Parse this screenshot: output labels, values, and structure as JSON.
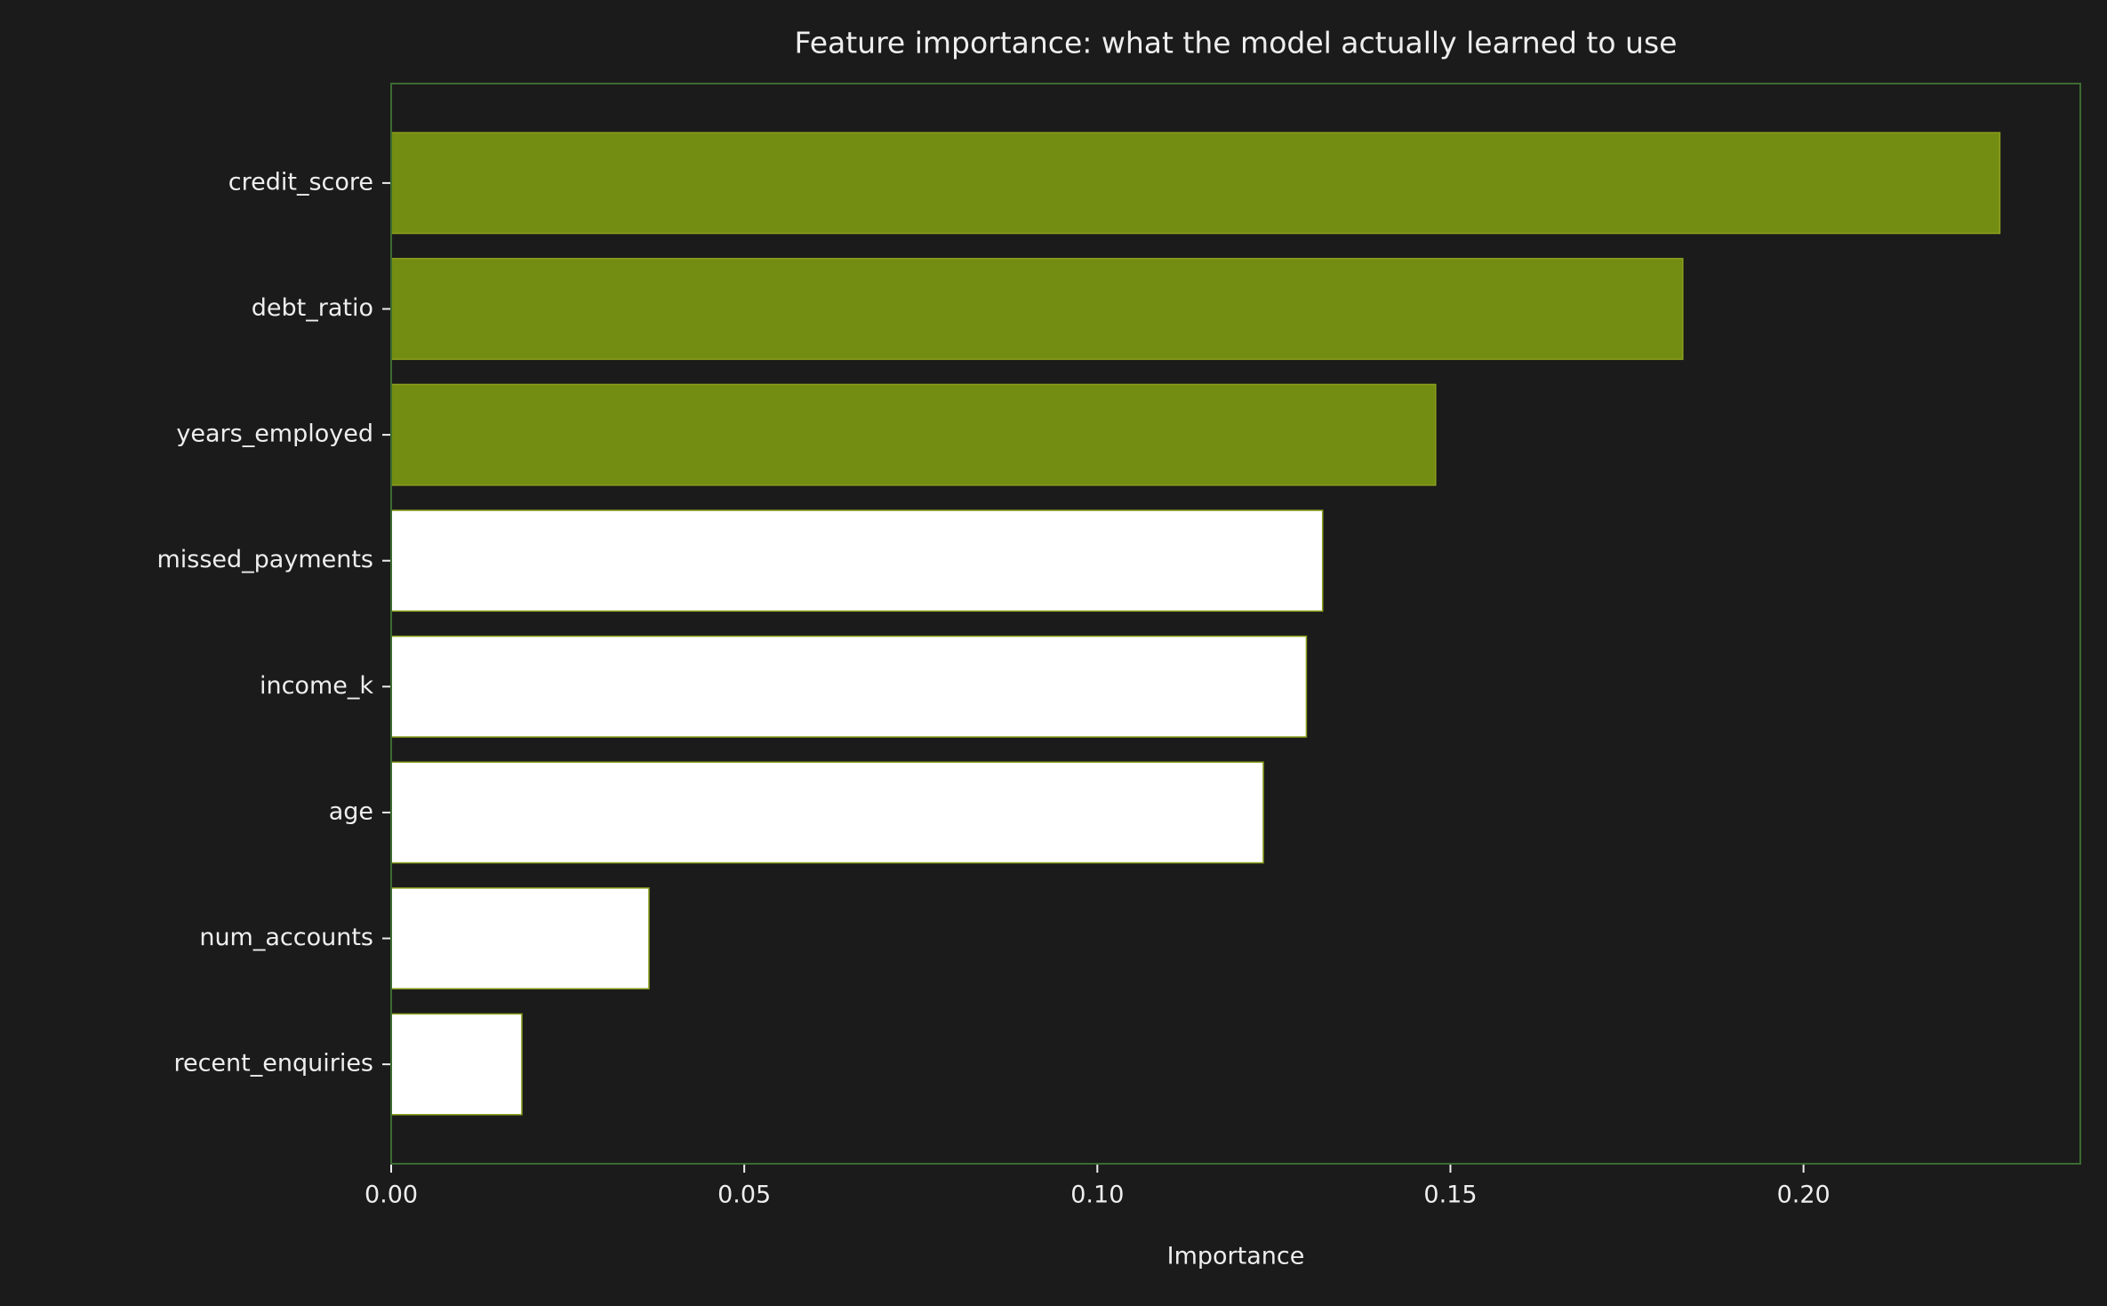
{
  "chart_data": {
    "type": "barh",
    "title": "Feature importance: what the model actually learned to use",
    "xlabel": "Importance",
    "categories": [
      "credit_score",
      "debt_ratio",
      "years_employed",
      "missed_payments",
      "income_k",
      "age",
      "num_accounts",
      "recent_enquiries"
    ],
    "values": [
      0.2278,
      0.1829,
      0.1479,
      0.1319,
      0.1296,
      0.1235,
      0.0365,
      0.0185
    ],
    "colors": [
      "#738c12",
      "#738c12",
      "#738c12",
      "#ffffff",
      "#ffffff",
      "#ffffff",
      "#ffffff",
      "#ffffff"
    ],
    "edgecolor": "#8ca01e",
    "xlim": [
      0,
      0.2392
    ],
    "xticks": [
      {
        "value": 0,
        "label": "0.00"
      },
      0.05,
      {
        "value": 0.1,
        "label": "0.10"
      },
      0.15,
      {
        "value": 0.2,
        "label": "0.20"
      }
    ]
  }
}
